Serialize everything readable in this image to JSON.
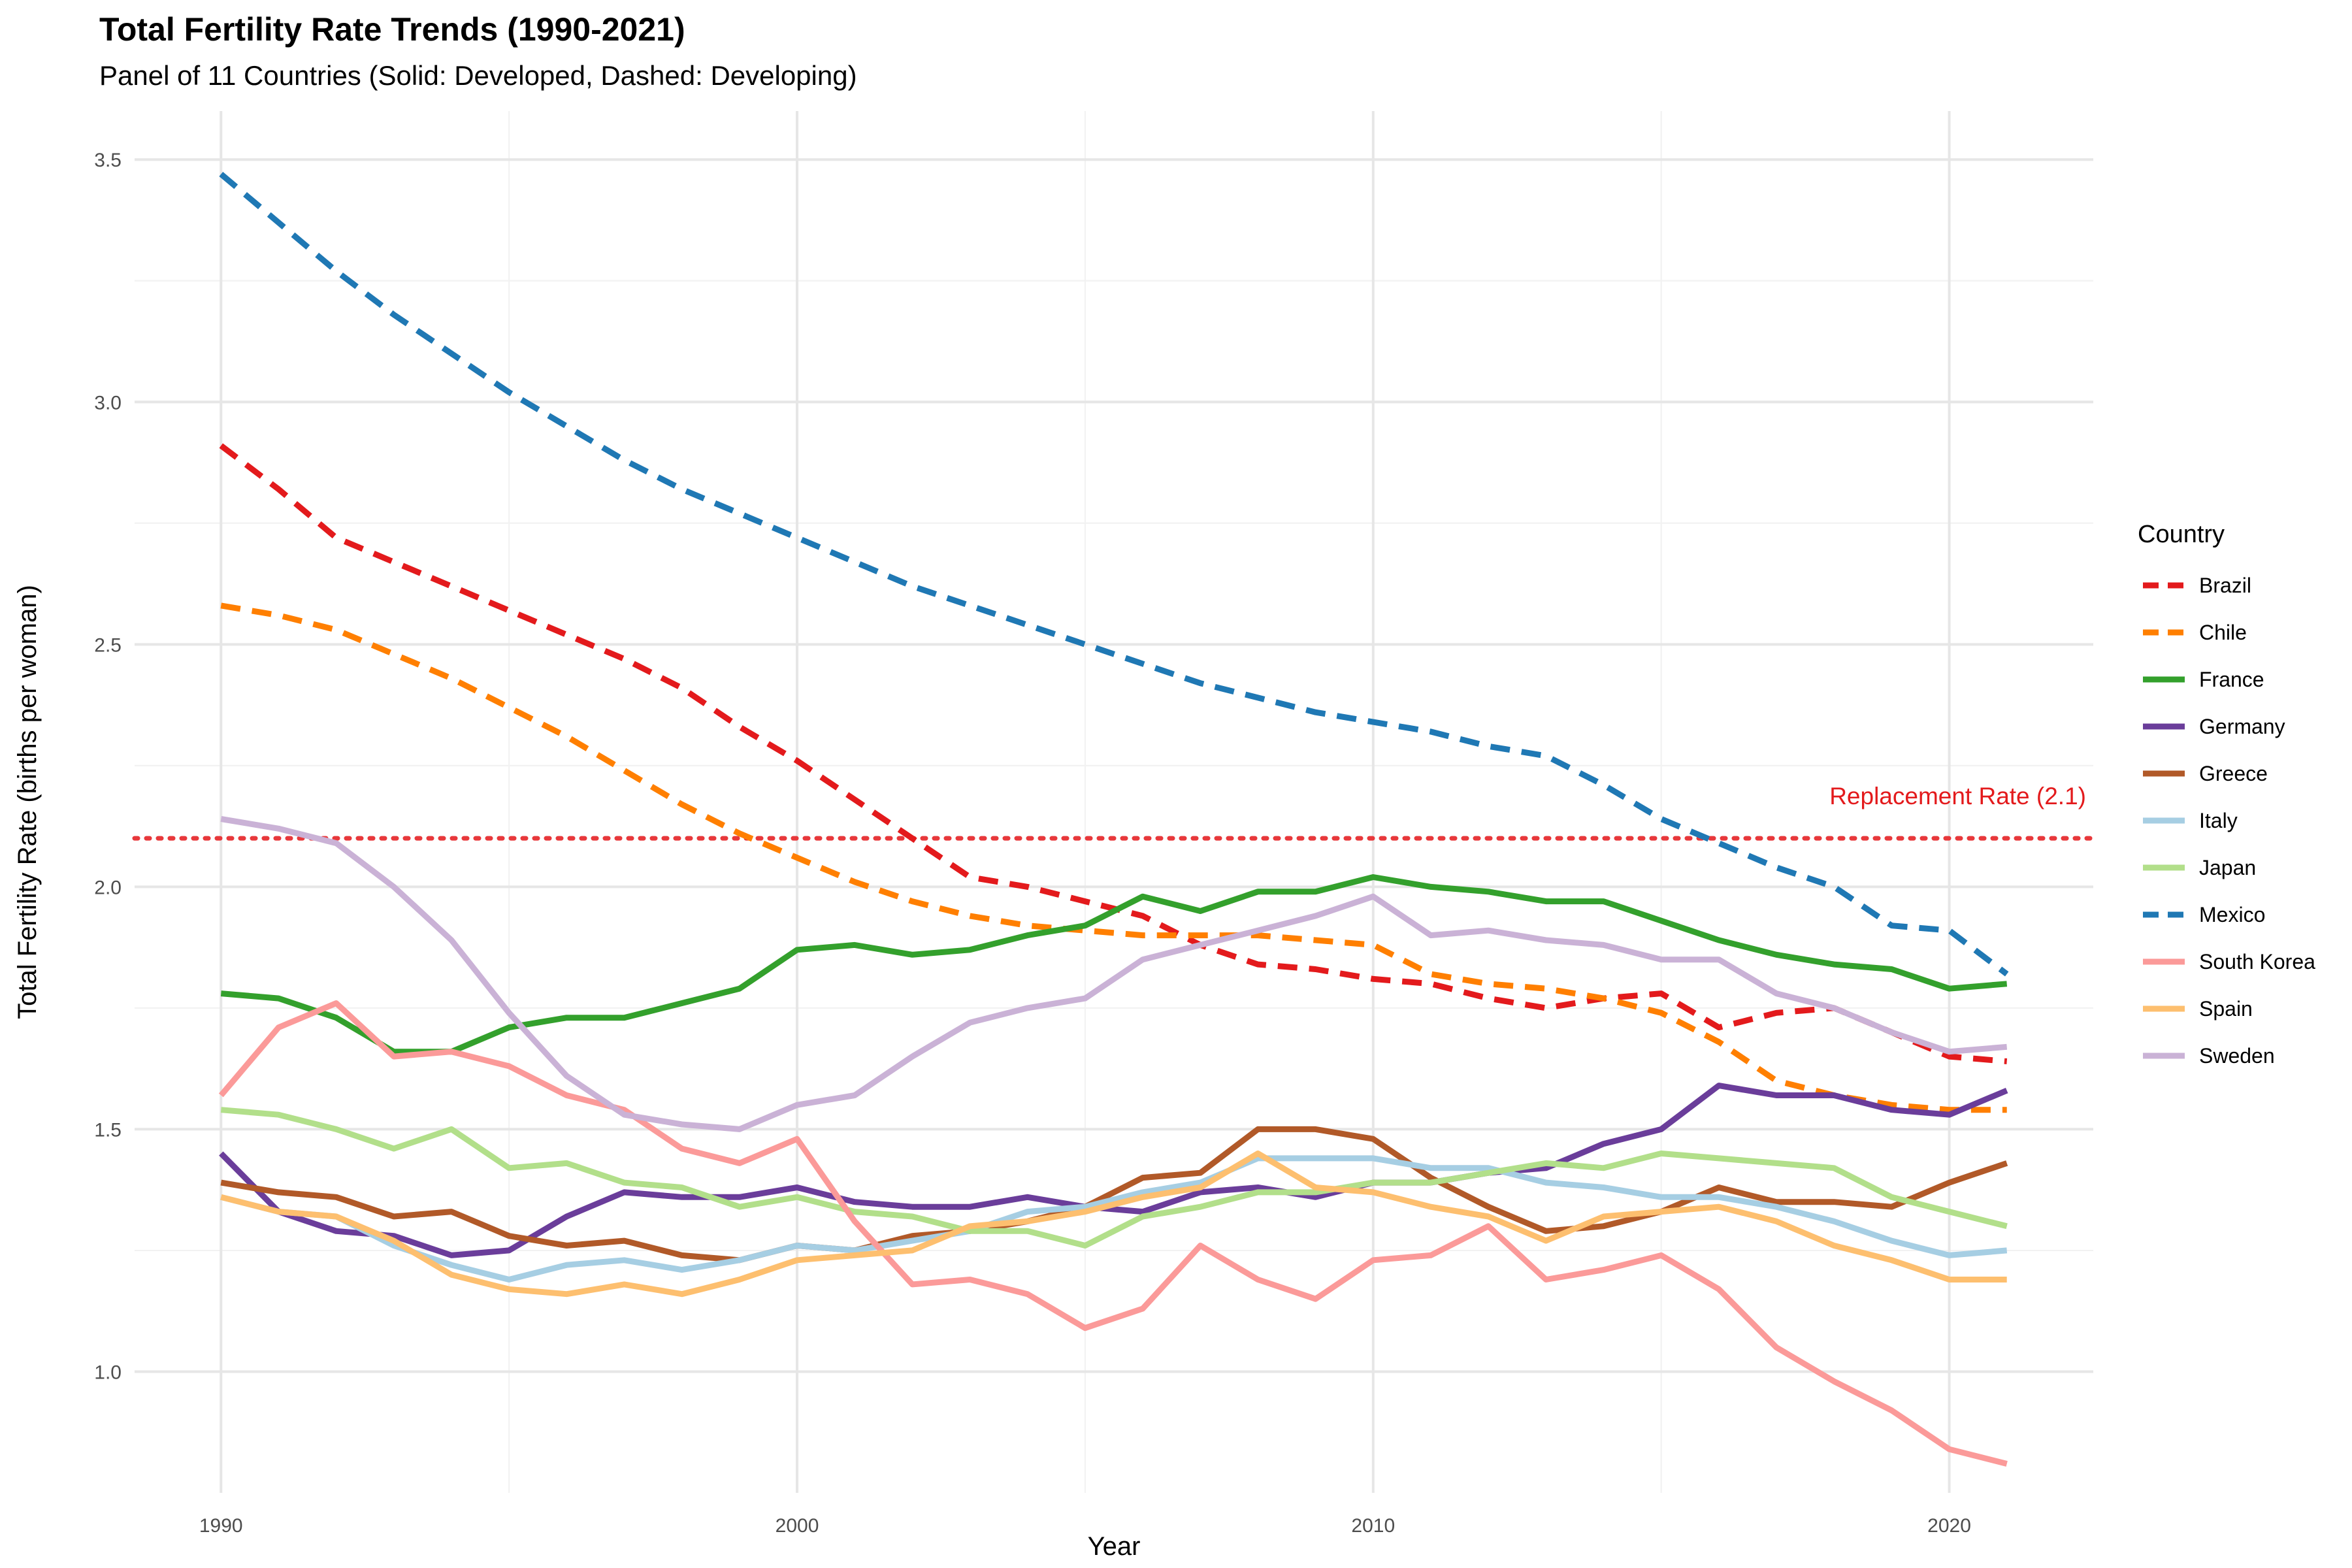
{
  "chart_data": {
    "type": "line",
    "title": "Total Fertility Rate Trends (1990-2021)",
    "subtitle": "Panel of 11 Countries (Solid: Developed, Dashed: Developing)",
    "xlabel": "Year",
    "ylabel": "Total Fertility Rate (births per woman)",
    "xlim": [
      1988.5,
      2022.5
    ],
    "ylim": [
      0.75,
      3.6
    ],
    "x_ticks": [
      1990,
      2000,
      2010,
      2020
    ],
    "y_ticks": [
      1.0,
      1.5,
      2.0,
      2.5,
      3.0,
      3.5
    ],
    "y_tick_labels": [
      "1.0",
      "1.5",
      "2.0",
      "2.5",
      "3.0",
      "3.5"
    ],
    "grid": true,
    "legend_title": "Country",
    "legend_position": "right",
    "reference_line": {
      "value": 2.1,
      "label": "Replacement Rate (2.1)",
      "color": "#E8383B"
    },
    "x": [
      1990,
      1991,
      1992,
      1993,
      1994,
      1995,
      1996,
      1997,
      1998,
      1999,
      2000,
      2001,
      2002,
      2003,
      2004,
      2005,
      2006,
      2007,
      2008,
      2009,
      2010,
      2011,
      2012,
      2013,
      2014,
      2015,
      2016,
      2017,
      2018,
      2019,
      2020,
      2021
    ],
    "series": [
      {
        "name": "Brazil",
        "color": "#E31A1C",
        "dashed": true,
        "values": [
          2.91,
          2.82,
          2.72,
          2.67,
          2.62,
          2.57,
          2.52,
          2.47,
          2.41,
          2.33,
          2.26,
          2.18,
          2.1,
          2.02,
          2.0,
          1.97,
          1.94,
          1.88,
          1.84,
          1.83,
          1.81,
          1.8,
          1.77,
          1.75,
          1.77,
          1.78,
          1.71,
          1.74,
          1.75,
          1.7,
          1.65,
          1.64
        ]
      },
      {
        "name": "Chile",
        "color": "#FF7F00",
        "dashed": true,
        "values": [
          2.58,
          2.56,
          2.53,
          2.48,
          2.43,
          2.37,
          2.31,
          2.24,
          2.17,
          2.11,
          2.06,
          2.01,
          1.97,
          1.94,
          1.92,
          1.91,
          1.9,
          1.9,
          1.9,
          1.89,
          1.88,
          1.82,
          1.8,
          1.79,
          1.77,
          1.74,
          1.68,
          1.6,
          1.57,
          1.55,
          1.54,
          1.54
        ]
      },
      {
        "name": "France",
        "color": "#33A02C",
        "dashed": false,
        "values": [
          1.78,
          1.77,
          1.73,
          1.66,
          1.66,
          1.71,
          1.73,
          1.73,
          1.76,
          1.79,
          1.87,
          1.88,
          1.86,
          1.87,
          1.9,
          1.92,
          1.98,
          1.95,
          1.99,
          1.99,
          2.02,
          2.0,
          1.99,
          1.97,
          1.97,
          1.93,
          1.89,
          1.86,
          1.84,
          1.83,
          1.79,
          1.8
        ]
      },
      {
        "name": "Germany",
        "color": "#6A3D9A",
        "dashed": false,
        "values": [
          1.45,
          1.33,
          1.29,
          1.28,
          1.24,
          1.25,
          1.32,
          1.37,
          1.36,
          1.36,
          1.38,
          1.35,
          1.34,
          1.34,
          1.36,
          1.34,
          1.33,
          1.37,
          1.38,
          1.36,
          1.39,
          1.39,
          1.41,
          1.42,
          1.47,
          1.5,
          1.59,
          1.57,
          1.57,
          1.54,
          1.53,
          1.58
        ]
      },
      {
        "name": "Greece",
        "color": "#B15928",
        "dashed": false,
        "values": [
          1.39,
          1.37,
          1.36,
          1.32,
          1.33,
          1.28,
          1.26,
          1.27,
          1.24,
          1.23,
          1.26,
          1.25,
          1.28,
          1.29,
          1.31,
          1.34,
          1.4,
          1.41,
          1.5,
          1.5,
          1.48,
          1.4,
          1.34,
          1.29,
          1.3,
          1.33,
          1.38,
          1.35,
          1.35,
          1.34,
          1.39,
          1.43
        ]
      },
      {
        "name": "Italy",
        "color": "#A6CEE3",
        "dashed": false,
        "values": [
          1.36,
          1.33,
          1.32,
          1.26,
          1.22,
          1.19,
          1.22,
          1.23,
          1.21,
          1.23,
          1.26,
          1.25,
          1.27,
          1.29,
          1.33,
          1.34,
          1.37,
          1.39,
          1.44,
          1.44,
          1.44,
          1.42,
          1.42,
          1.39,
          1.38,
          1.36,
          1.36,
          1.34,
          1.31,
          1.27,
          1.24,
          1.25
        ]
      },
      {
        "name": "Japan",
        "color": "#B2DF8A",
        "dashed": false,
        "values": [
          1.54,
          1.53,
          1.5,
          1.46,
          1.5,
          1.42,
          1.43,
          1.39,
          1.38,
          1.34,
          1.36,
          1.33,
          1.32,
          1.29,
          1.29,
          1.26,
          1.32,
          1.34,
          1.37,
          1.37,
          1.39,
          1.39,
          1.41,
          1.43,
          1.42,
          1.45,
          1.44,
          1.43,
          1.42,
          1.36,
          1.33,
          1.3
        ]
      },
      {
        "name": "Mexico",
        "color": "#1F78B4",
        "dashed": true,
        "values": [
          3.47,
          3.37,
          3.27,
          3.18,
          3.1,
          3.02,
          2.95,
          2.88,
          2.82,
          2.77,
          2.72,
          2.67,
          2.62,
          2.58,
          2.54,
          2.5,
          2.46,
          2.42,
          2.39,
          2.36,
          2.34,
          2.32,
          2.29,
          2.27,
          2.21,
          2.14,
          2.09,
          2.04,
          2.0,
          1.92,
          1.91,
          1.82
        ]
      },
      {
        "name": "South Korea",
        "color": "#FB9A99",
        "dashed": false,
        "values": [
          1.57,
          1.71,
          1.76,
          1.65,
          1.66,
          1.63,
          1.57,
          1.54,
          1.46,
          1.43,
          1.48,
          1.31,
          1.18,
          1.19,
          1.16,
          1.09,
          1.13,
          1.26,
          1.19,
          1.15,
          1.23,
          1.24,
          1.3,
          1.19,
          1.21,
          1.24,
          1.17,
          1.05,
          0.98,
          0.92,
          0.84,
          0.81
        ]
      },
      {
        "name": "Spain",
        "color": "#FDBF6F",
        "dashed": false,
        "values": [
          1.36,
          1.33,
          1.32,
          1.27,
          1.2,
          1.17,
          1.16,
          1.18,
          1.16,
          1.19,
          1.23,
          1.24,
          1.25,
          1.3,
          1.31,
          1.33,
          1.36,
          1.38,
          1.45,
          1.38,
          1.37,
          1.34,
          1.32,
          1.27,
          1.32,
          1.33,
          1.34,
          1.31,
          1.26,
          1.23,
          1.19,
          1.19
        ]
      },
      {
        "name": "Sweden",
        "color": "#CAB2D6",
        "dashed": false,
        "values": [
          2.14,
          2.12,
          2.09,
          2.0,
          1.89,
          1.74,
          1.61,
          1.53,
          1.51,
          1.5,
          1.55,
          1.57,
          1.65,
          1.72,
          1.75,
          1.77,
          1.85,
          1.88,
          1.91,
          1.94,
          1.98,
          1.9,
          1.91,
          1.89,
          1.88,
          1.85,
          1.85,
          1.78,
          1.75,
          1.7,
          1.66,
          1.67
        ]
      }
    ]
  }
}
